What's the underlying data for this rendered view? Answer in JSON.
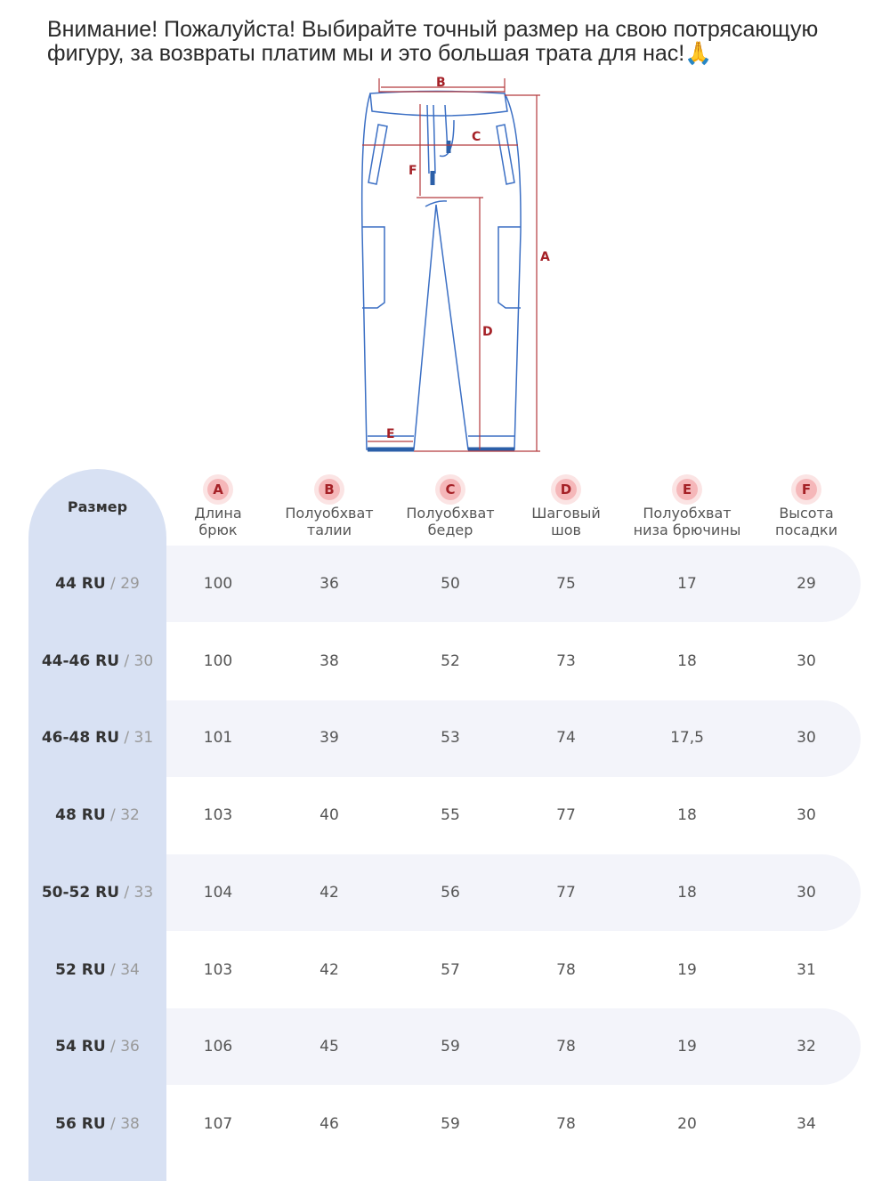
{
  "notice": "Внимание! Пожалуйста! Выбирайте точный размер на свою потрясающую фигуру, за возвраты платим мы и это большая трата для нас!🙏",
  "diagram_labels": [
    "A",
    "B",
    "C",
    "D",
    "E",
    "F"
  ],
  "colors": {
    "accent": "#a52127",
    "line": "#3b6fc4",
    "size_col": "#d8e1f3",
    "stripe": "#f3f4fa"
  },
  "table": {
    "size_header": "Размер",
    "columns": [
      {
        "letter": "A",
        "l1": "Длина",
        "l2": "брюк"
      },
      {
        "letter": "B",
        "l1": "Полуобхват",
        "l2": "талии"
      },
      {
        "letter": "C",
        "l1": "Полуобхват",
        "l2": "бедер"
      },
      {
        "letter": "D",
        "l1": "Шаговый",
        "l2": "шов"
      },
      {
        "letter": "E",
        "l1": "Полуобхват",
        "l2": "низа брючины"
      },
      {
        "letter": "F",
        "l1": "Высота",
        "l2": "посадки"
      }
    ],
    "rows": [
      {
        "ru": "44 RU",
        "us": " / 29",
        "v": [
          "100",
          "36",
          "50",
          "75",
          "17",
          "29"
        ]
      },
      {
        "ru": "44-46 RU",
        "us": " / 30",
        "v": [
          "100",
          "38",
          "52",
          "73",
          "18",
          "30"
        ]
      },
      {
        "ru": "46-48 RU",
        "us": " / 31",
        "v": [
          "101",
          "39",
          "53",
          "74",
          "17,5",
          "30"
        ]
      },
      {
        "ru": "48 RU",
        "us": " / 32",
        "v": [
          "103",
          "40",
          "55",
          "77",
          "18",
          "30"
        ]
      },
      {
        "ru": "50-52 RU",
        "us": " / 33",
        "v": [
          "104",
          "42",
          "56",
          "77",
          "18",
          "30"
        ]
      },
      {
        "ru": "52 RU",
        "us": " / 34",
        "v": [
          "103",
          "42",
          "57",
          "78",
          "19",
          "31"
        ]
      },
      {
        "ru": "54 RU",
        "us": " / 36",
        "v": [
          "106",
          "45",
          "59",
          "78",
          "19",
          "32"
        ]
      },
      {
        "ru": "56 RU",
        "us": " / 38",
        "v": [
          "107",
          "46",
          "59",
          "78",
          "20",
          "34"
        ]
      }
    ]
  }
}
